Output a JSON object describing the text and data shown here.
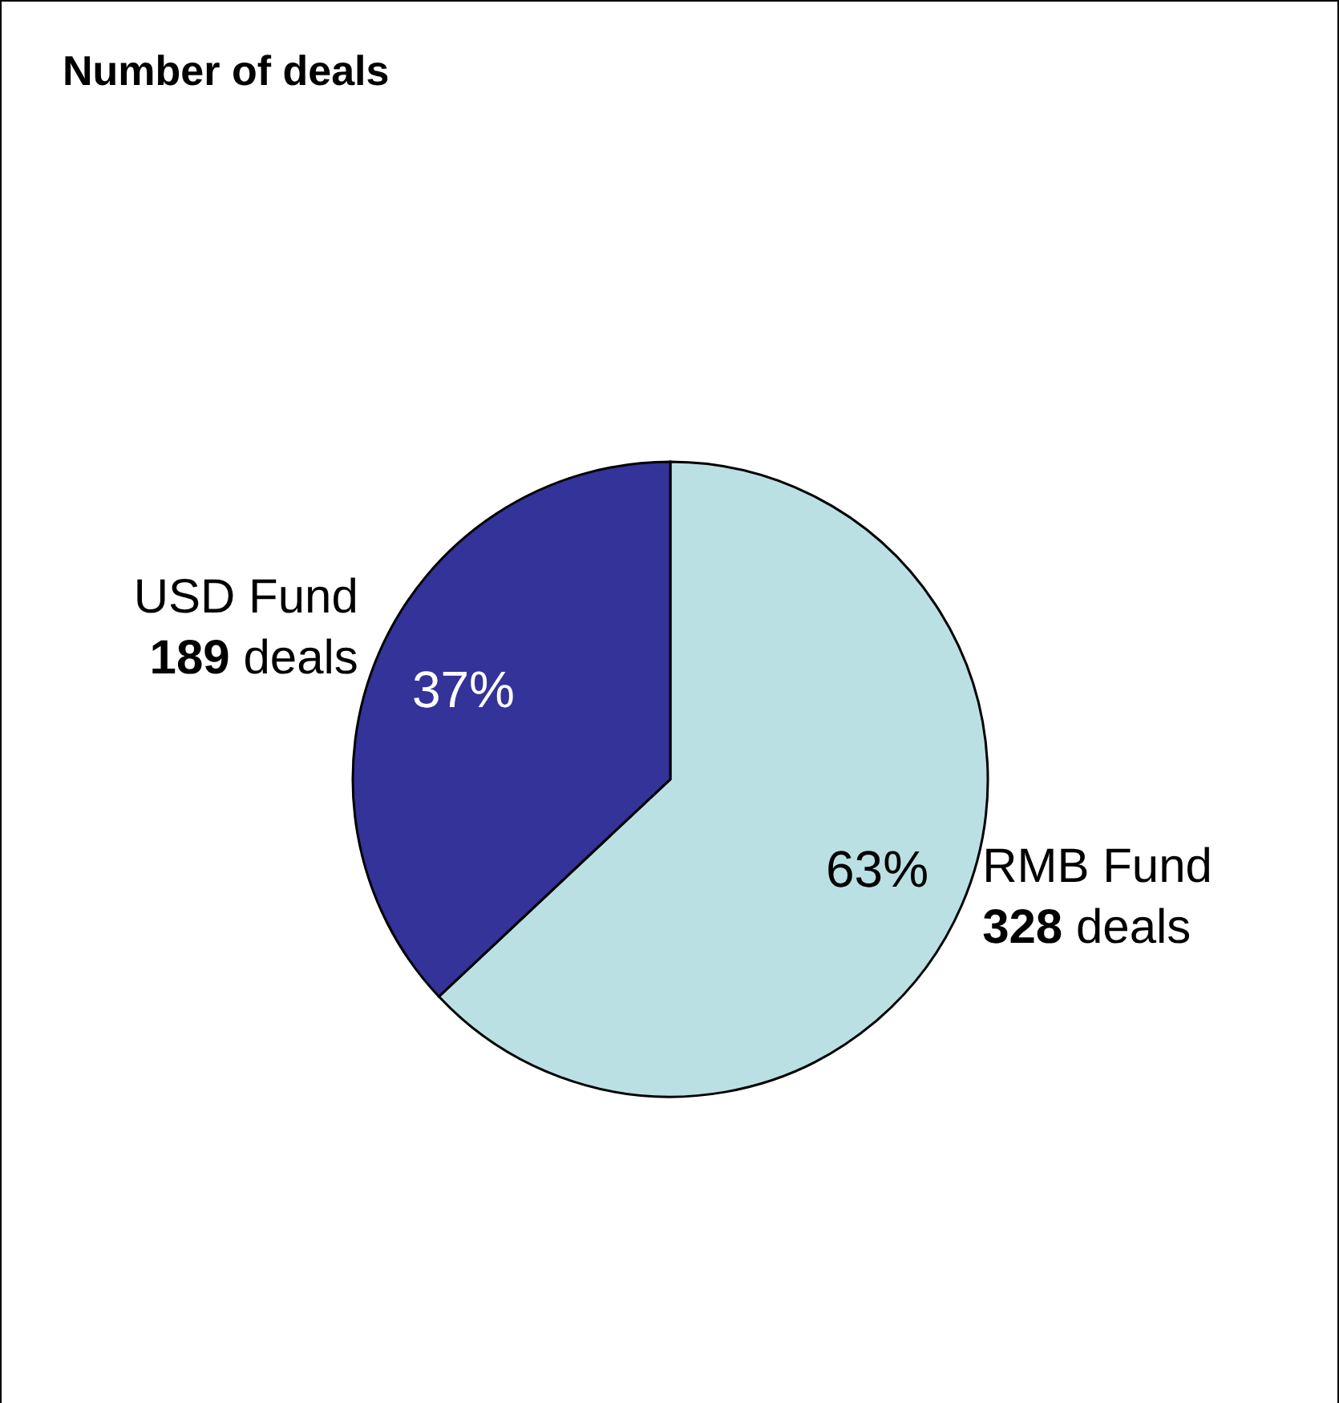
{
  "chart_data": {
    "type": "pie",
    "title": "Number of deals",
    "categories": [
      "RMB Fund",
      "USD Fund"
    ],
    "values": [
      63,
      37
    ],
    "colors": [
      "#bbe0e3",
      "#333399"
    ],
    "value_labels": [
      "63%",
      "37%"
    ],
    "annotations": [
      "328 deals",
      "189 deals"
    ],
    "legend": false
  }
}
